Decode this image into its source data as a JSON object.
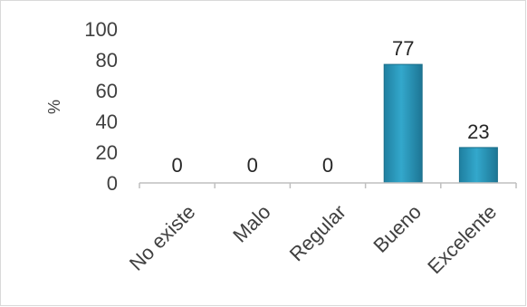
{
  "chart_data": {
    "type": "bar",
    "categories": [
      "No existe",
      "Malo",
      "Regular",
      "Bueno",
      "Excelente"
    ],
    "values": [
      0,
      0,
      0,
      77,
      23
    ],
    "data_labels": [
      "0",
      "0",
      "0",
      "77",
      "23"
    ],
    "title": "",
    "xlabel": "",
    "ylabel": "%",
    "ylim": [
      0,
      100
    ],
    "yticks": [
      "0",
      "20",
      "40",
      "60",
      "80",
      "100"
    ],
    "grid": false,
    "legend": "none",
    "bar_color": "#2e9fc2",
    "bar_edge_color": "#1b6f8a"
  }
}
